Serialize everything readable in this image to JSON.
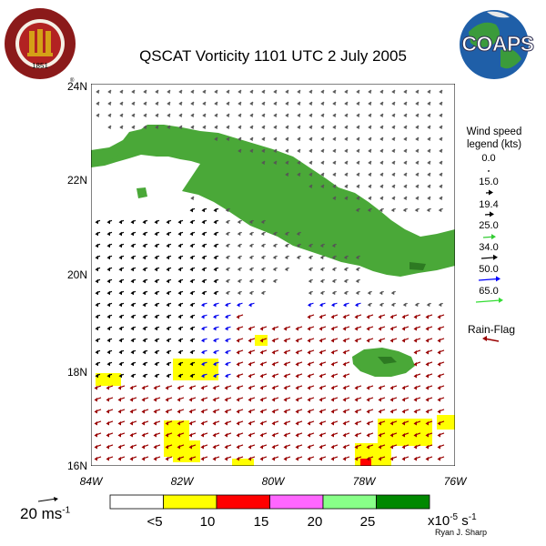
{
  "title": "QSCAT Vorticity 1101 UTC 2 July 2005",
  "lat_ticks": [
    "24N",
    "22N",
    "20N",
    "18N",
    "16N"
  ],
  "lon_ticks": [
    "84W",
    "82W",
    "80W",
    "78W",
    "76W"
  ],
  "legend": {
    "title_lines": [
      "Wind speed",
      "legend (kts)"
    ],
    "items": [
      {
        "label": "0.0",
        "color": "#000000"
      },
      {
        "label": "15.0",
        "color": "#000000"
      },
      {
        "label": "19.4",
        "color": "#000000"
      },
      {
        "label": "25.0",
        "color": "#33cc33"
      },
      {
        "label": "34.0",
        "color": "#000000"
      },
      {
        "label": "50.0",
        "color": "#0000ff"
      },
      {
        "label": "65.0",
        "color": "#33dd33"
      }
    ],
    "rain_flag": "Rain-Flag",
    "rain_flag_color": "#990000"
  },
  "reference_vector": {
    "value": "20 ms",
    "exponent": "-1"
  },
  "colorbar": {
    "labels": [
      "<5",
      "10",
      "15",
      "20",
      "25"
    ],
    "units_base": "x10",
    "units_exp1": "-5",
    "units_mid": " s",
    "units_exp2": "-1",
    "colors": [
      "#ffffff",
      "#ffff00",
      "#ff0000",
      "#ff66ff",
      "#88ff88",
      "#008800"
    ]
  },
  "credit": "Ryan J. Sharp",
  "logos": {
    "fsu_text": "FLORIDA STATE UNIVERSITY",
    "fsu_year": "1851",
    "coaps": "COAPS"
  },
  "colors": {
    "land": "#4aa838",
    "land_dark": "#2d7a22",
    "high_vort": "#ffff00",
    "very_high_vort": "#ff0000",
    "vec_black": "#000000",
    "vec_grey": "#555555",
    "vec_blue": "#0000ee",
    "vec_red": "#990000"
  }
}
